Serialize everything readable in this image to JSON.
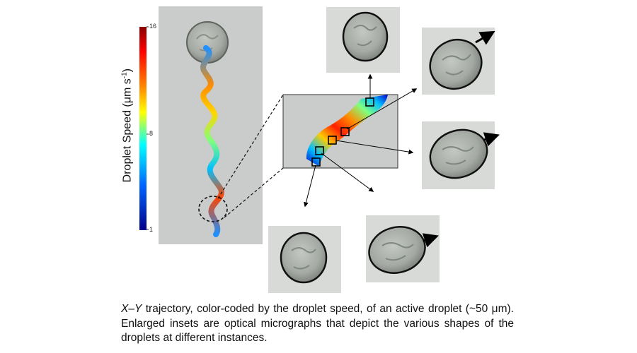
{
  "colorbar": {
    "label": "Droplet Speed (μm s⁻¹)",
    "label_main": "Droplet Speed (μm s",
    "label_sup": "-1",
    "label_close": ")",
    "ticks": [
      "16",
      "8",
      "1"
    ],
    "colors": [
      "#8b0000",
      "#ff0000",
      "#ff8c00",
      "#ffff00",
      "#00ffff",
      "#0064ff",
      "#00008b"
    ]
  },
  "caption": {
    "italic_lead": "X–Y",
    "text": " trajectory, color-coded by the droplet speed, of an active droplet (~50 μm). Enlarged insets are optical micrographs that depict the various shapes of the droplets at different instances."
  }
}
